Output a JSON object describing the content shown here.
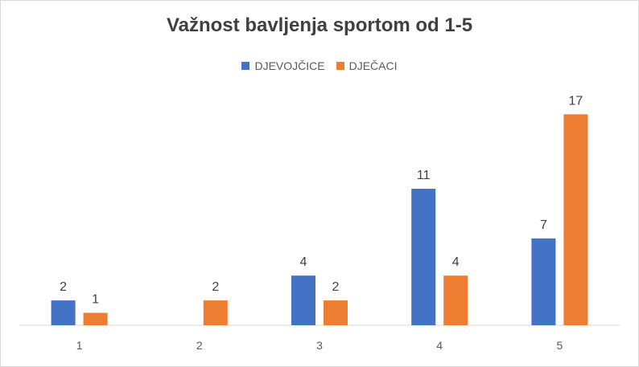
{
  "chart_data": {
    "type": "bar",
    "title": "Važnost bavljenja sportom od 1-5",
    "categories": [
      "1",
      "2",
      "3",
      "4",
      "5"
    ],
    "series": [
      {
        "name": "DJEVOJČICE",
        "color": "#4472C4",
        "values": [
          2,
          null,
          4,
          11,
          7
        ]
      },
      {
        "name": "DJEČACI",
        "color": "#ED7D31",
        "values": [
          1,
          2,
          2,
          4,
          17
        ]
      }
    ],
    "ylim": [
      0,
      20
    ],
    "grid": false,
    "legend_position": "top-center",
    "data_labels": true
  }
}
